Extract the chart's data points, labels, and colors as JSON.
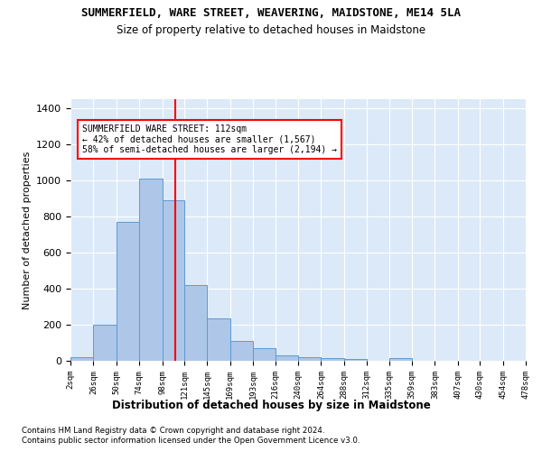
{
  "title": "SUMMERFIELD, WARE STREET, WEAVERING, MAIDSTONE, ME14 5LA",
  "subtitle": "Size of property relative to detached houses in Maidstone",
  "xlabel": "Distribution of detached houses by size in Maidstone",
  "ylabel": "Number of detached properties",
  "bar_color": "#aec6e8",
  "bar_edge_color": "#5b9bd5",
  "background_color": "#dce9f8",
  "grid_color": "#ffffff",
  "vline_x": 112,
  "vline_color": "red",
  "annotation_text": "SUMMERFIELD WARE STREET: 112sqm\n← 42% of detached houses are smaller (1,567)\n58% of semi-detached houses are larger (2,194) →",
  "annotation_box_color": "white",
  "annotation_edge_color": "red",
  "footnote1": "Contains HM Land Registry data © Crown copyright and database right 2024.",
  "footnote2": "Contains public sector information licensed under the Open Government Licence v3.0.",
  "bin_edges": [
    2,
    26,
    50,
    74,
    98,
    121,
    145,
    169,
    193,
    216,
    240,
    264,
    288,
    312,
    335,
    359,
    383,
    407,
    430,
    454,
    478
  ],
  "bin_labels": [
    "2sqm",
    "26sqm",
    "50sqm",
    "74sqm",
    "98sqm",
    "121sqm",
    "145sqm",
    "169sqm",
    "193sqm",
    "216sqm",
    "240sqm",
    "264sqm",
    "288sqm",
    "312sqm",
    "335sqm",
    "359sqm",
    "383sqm",
    "407sqm",
    "430sqm",
    "454sqm",
    "478sqm"
  ],
  "bar_heights": [
    20,
    200,
    770,
    1010,
    890,
    420,
    235,
    108,
    70,
    30,
    22,
    15,
    10,
    0,
    15,
    0,
    0,
    0,
    0,
    0
  ],
  "ylim": [
    0,
    1450
  ],
  "yticks": [
    0,
    200,
    400,
    600,
    800,
    1000,
    1200,
    1400
  ]
}
